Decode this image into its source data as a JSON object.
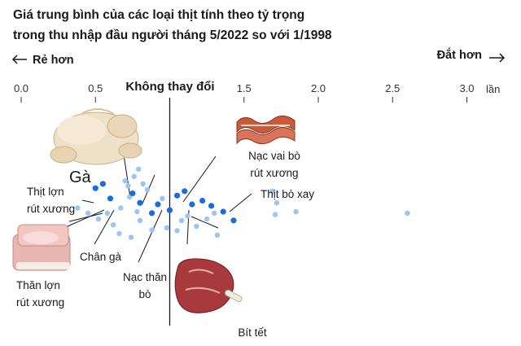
{
  "chart_data": {
    "type": "scatter",
    "title_lines": [
      "Giá trung bình của các loại thịt tính theo tỷ trọng",
      "trong thu nhập đầu người tháng 5/2022 so với 1/1998"
    ],
    "direction_labels": {
      "cheaper": "Rẻ hơn",
      "pricier": "Đắt hơn"
    },
    "x_ticks": [
      {
        "value": 0.0,
        "label": "0.0"
      },
      {
        "value": 0.5,
        "label": "0.5"
      },
      {
        "value": 1.5,
        "label": "1.5"
      },
      {
        "value": 2.0,
        "label": "2.0"
      },
      {
        "value": 2.5,
        "label": "2.5"
      },
      {
        "value": 3.0,
        "label": "3.0"
      }
    ],
    "x_unit": "lần",
    "xlim": [
      0,
      3.15
    ],
    "reference_line": {
      "value": 1.0,
      "label": "Không thay đổi"
    },
    "colors": {
      "highlight": "#1a6de0",
      "other": "#9cc4f4",
      "ink": "#1a1a1a"
    },
    "highlighted_points": [
      {
        "x": 0.5,
        "y": 0.28
      },
      {
        "x": 0.55,
        "y": 0.22
      },
      {
        "x": 0.6,
        "y": 0.42
      },
      {
        "x": 0.75,
        "y": 0.35
      },
      {
        "x": 0.8,
        "y": 0.48
      },
      {
        "x": 0.88,
        "y": 0.62
      },
      {
        "x": 0.92,
        "y": 0.5
      },
      {
        "x": 1.0,
        "y": 0.58
      },
      {
        "x": 1.05,
        "y": 0.38
      },
      {
        "x": 1.1,
        "y": 0.32
      },
      {
        "x": 1.15,
        "y": 0.5
      },
      {
        "x": 1.22,
        "y": 0.45
      },
      {
        "x": 1.28,
        "y": 0.52
      },
      {
        "x": 1.36,
        "y": 0.6
      },
      {
        "x": 1.43,
        "y": 0.72
      }
    ],
    "other_points": [
      {
        "x": 0.38,
        "y": 0.55
      },
      {
        "x": 0.45,
        "y": 0.62
      },
      {
        "x": 0.52,
        "y": 0.7
      },
      {
        "x": 0.58,
        "y": 0.62
      },
      {
        "x": 0.62,
        "y": 0.78
      },
      {
        "x": 0.67,
        "y": 0.55
      },
      {
        "x": 0.7,
        "y": 0.18
      },
      {
        "x": 0.72,
        "y": 0.25
      },
      {
        "x": 0.73,
        "y": 0.4
      },
      {
        "x": 0.76,
        "y": 0.12
      },
      {
        "x": 0.78,
        "y": 0.6
      },
      {
        "x": 0.8,
        "y": 0.72
      },
      {
        "x": 0.82,
        "y": 0.22
      },
      {
        "x": 0.85,
        "y": 0.3
      },
      {
        "x": 0.88,
        "y": 0.85
      },
      {
        "x": 0.66,
        "y": 0.9
      },
      {
        "x": 0.74,
        "y": 0.95
      },
      {
        "x": 0.79,
        "y": 0.02
      },
      {
        "x": 0.95,
        "y": 0.42
      },
      {
        "x": 1.08,
        "y": 0.72
      },
      {
        "x": 1.12,
        "y": 0.66
      },
      {
        "x": 1.18,
        "y": 0.8
      },
      {
        "x": 1.25,
        "y": 0.7
      },
      {
        "x": 1.3,
        "y": 0.62
      },
      {
        "x": 1.32,
        "y": 0.92
      },
      {
        "x": 1.05,
        "y": 0.86
      },
      {
        "x": 0.98,
        "y": 0.82
      },
      {
        "x": 1.69,
        "y": 0.32
      },
      {
        "x": 1.72,
        "y": 0.48
      },
      {
        "x": 1.71,
        "y": 0.64
      },
      {
        "x": 1.85,
        "y": 0.6
      },
      {
        "x": 2.6,
        "y": 0.62
      }
    ],
    "annotations": [
      {
        "lines": [
          "Gà"
        ]
      },
      {
        "lines": [
          "Thịt lợn",
          "rút xương"
        ]
      },
      {
        "lines": [
          "Chân gà"
        ]
      },
      {
        "lines": [
          "Thăn lợn",
          "rút xương"
        ]
      },
      {
        "lines": [
          "Nạc thăn",
          "bò"
        ]
      },
      {
        "lines": [
          "Nạc vai bò",
          "rút xương"
        ]
      },
      {
        "lines": [
          "Thịt bò xay"
        ]
      },
      {
        "lines": [
          "Bít tết"
        ]
      }
    ]
  }
}
